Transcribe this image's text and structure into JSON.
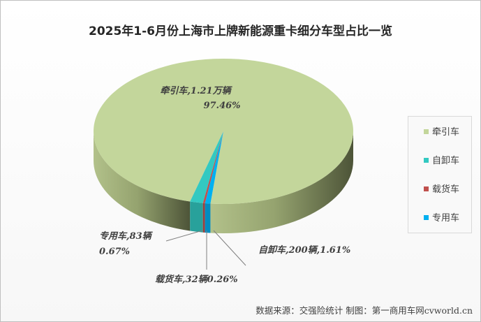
{
  "chart_data": {
    "type": "pie",
    "title": "2025年1-6月份上海市上牌新能源重卡细分车型占比一览",
    "slices": [
      {
        "name": "牵引车",
        "value": 97.46,
        "label_line1": "牵引车,1.21万辆",
        "label_line2": "97.46%",
        "color": "#c3d69b"
      },
      {
        "name": "自卸车",
        "value": 1.61,
        "label_line1": "自卸车,200辆,1.61%",
        "label_line2": "",
        "color": "#33c9c1"
      },
      {
        "name": "载货车",
        "value": 0.26,
        "label_line1": "载货车,32辆0.26%",
        "label_line2": "",
        "color": "#c0504d"
      },
      {
        "name": "专用车",
        "value": 0.67,
        "label_line1": "专用车,83辆",
        "label_line2": "0.67%",
        "color": "#00b0f0"
      }
    ],
    "legend": [
      "牵引车",
      "自卸车",
      "载货车",
      "专用车"
    ],
    "legend_position": "right",
    "style": "3d"
  },
  "source": "数据来源：交强险统计  制图：第一商用车网cvworld.cn"
}
